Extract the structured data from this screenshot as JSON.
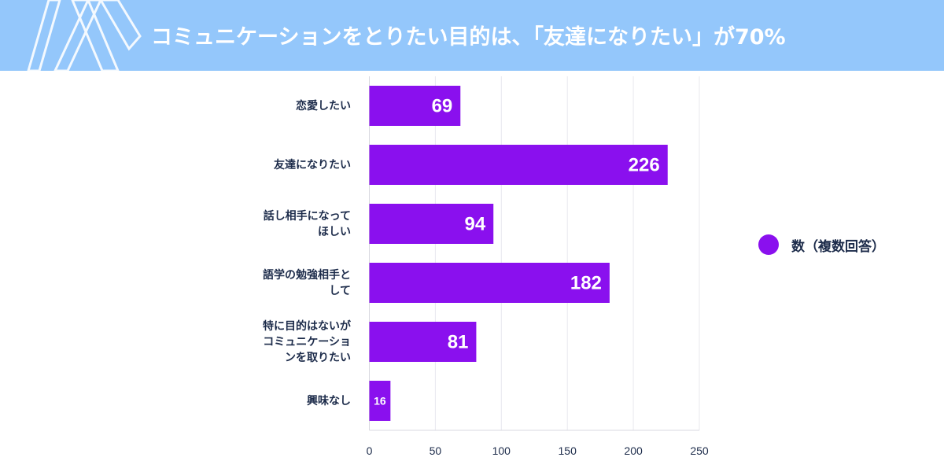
{
  "header": {
    "title": "コミュニケーションをとりたい目的は、「友達になりたい」が70%",
    "background_color": "#94c7fb",
    "logo": "X-logo"
  },
  "chart_data": {
    "type": "bar",
    "orientation": "horizontal",
    "title": "コミュニケーションをとりたい目的は、「友達になりたい」が70%",
    "categories": [
      "恋愛したい",
      "友達になりたい",
      "話し相手になって\nほしい",
      "語学の勉強相手と\nして",
      "特に目的はないが\nコミュニケーショ\nンを取りたい",
      "興味なし"
    ],
    "series": [
      {
        "name": "数（複数回答）",
        "values": [
          69,
          226,
          94,
          182,
          81,
          16
        ],
        "color": "#8a10ee"
      }
    ],
    "xlim": [
      0,
      250
    ],
    "xticks": [
      "0",
      "50",
      "100",
      "150",
      "200",
      "250"
    ],
    "grid": true,
    "legend_position": "right",
    "xlabel": "",
    "ylabel": ""
  },
  "legend": {
    "label": "数（複数回答）",
    "color": "#8a10ee"
  }
}
